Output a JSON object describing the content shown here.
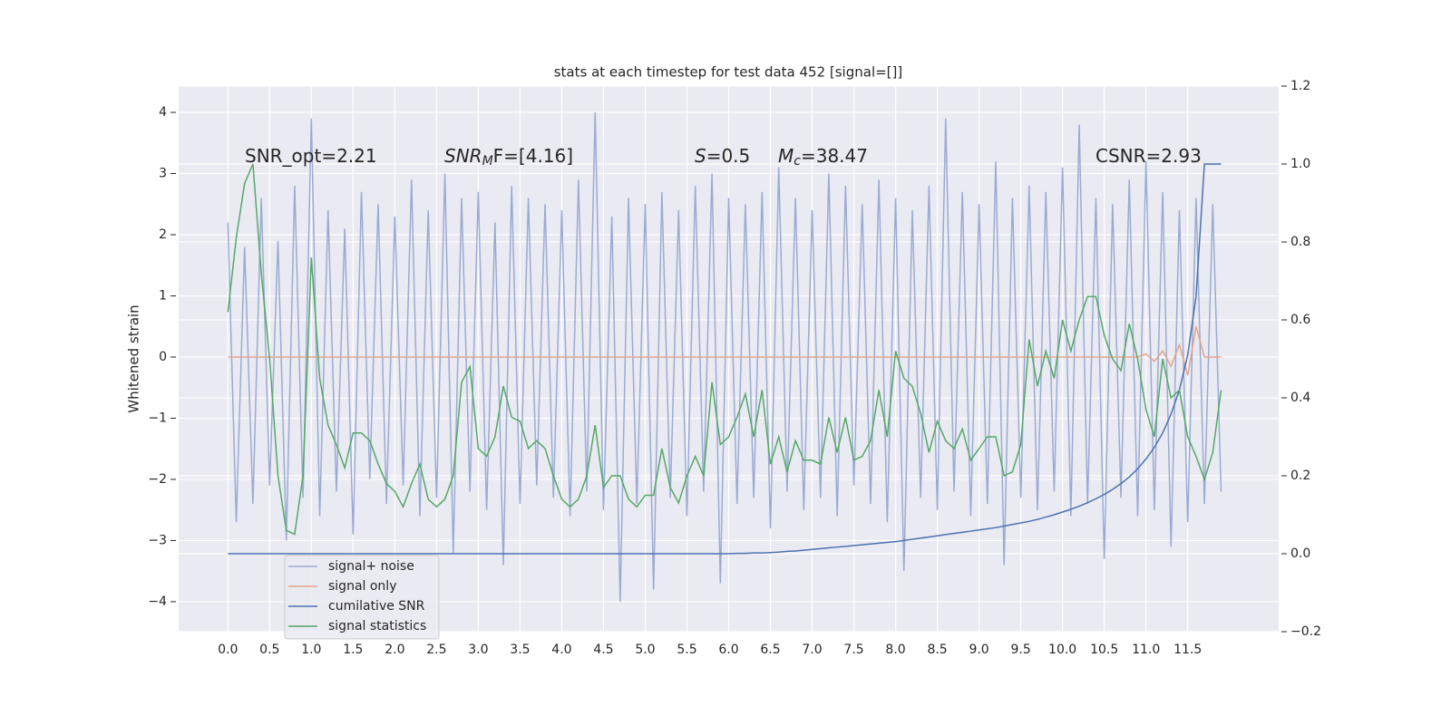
{
  "chart_data": {
    "type": "line",
    "title": "stats at each timestep for test data 452 [signal=[]]",
    "ylabel": "Whitened strain",
    "annotations": [
      {
        "parts": [
          "SNR_opt=2.21"
        ]
      },
      {
        "parts": [
          "SNR",
          "M",
          "F=[4.16]"
        ]
      },
      {
        "parts": [
          "S",
          "=0.5"
        ]
      },
      {
        "parts": [
          "M",
          "c",
          "=38.47"
        ]
      },
      {
        "parts": [
          "CSNR=2.93"
        ]
      }
    ],
    "x": [
      0,
      0.1,
      0.2,
      0.3,
      0.4,
      0.5,
      0.6,
      0.7,
      0.8,
      0.9,
      1.0,
      1.1,
      1.2,
      1.3,
      1.4,
      1.5,
      1.6,
      1.7,
      1.8,
      1.9,
      2.0,
      2.1,
      2.2,
      2.3,
      2.4,
      2.5,
      2.6,
      2.7,
      2.8,
      2.9,
      3.0,
      3.1,
      3.2,
      3.3,
      3.4,
      3.5,
      3.6,
      3.7,
      3.8,
      3.9,
      4.0,
      4.1,
      4.2,
      4.3,
      4.4,
      4.5,
      4.6,
      4.7,
      4.8,
      4.9,
      5.0,
      5.1,
      5.2,
      5.3,
      5.4,
      5.5,
      5.6,
      5.7,
      5.8,
      5.9,
      6.0,
      6.1,
      6.2,
      6.3,
      6.4,
      6.5,
      6.6,
      6.7,
      6.8,
      6.9,
      7.0,
      7.1,
      7.2,
      7.3,
      7.4,
      7.5,
      7.6,
      7.7,
      7.8,
      7.9,
      8.0,
      8.1,
      8.2,
      8.3,
      8.4,
      8.5,
      8.6,
      8.7,
      8.8,
      8.9,
      9.0,
      9.1,
      9.2,
      9.3,
      9.4,
      9.5,
      9.6,
      9.7,
      9.8,
      9.9,
      10.0,
      10.1,
      10.2,
      10.3,
      10.4,
      10.5,
      10.6,
      10.7,
      10.8,
      10.9,
      11.0,
      11.1,
      11.2,
      11.3,
      11.4,
      11.5,
      11.6,
      11.7,
      11.8,
      11.9
    ],
    "series": [
      {
        "name": "signal+ noise",
        "color": "#9aabd2",
        "values": [
          2.2,
          -2.7,
          1.8,
          -2.4,
          2.6,
          -2.1,
          1.9,
          -3.0,
          2.8,
          -2.3,
          3.9,
          -2.6,
          2.4,
          -2.2,
          2.1,
          -2.9,
          2.7,
          -2.0,
          2.5,
          -2.4,
          2.3,
          -2.1,
          2.9,
          -2.6,
          2.4,
          -2.3,
          3.0,
          -3.2,
          2.6,
          -2.2,
          2.7,
          -2.5,
          2.2,
          -3.4,
          2.8,
          -2.4,
          2.6,
          -2.1,
          2.5,
          -2.3,
          2.4,
          -2.6,
          2.9,
          -2.2,
          4.0,
          -2.5,
          2.3,
          -4.0,
          2.6,
          -2.4,
          2.5,
          -3.8,
          2.7,
          -2.3,
          2.4,
          -2.6,
          2.8,
          -2.2,
          3.0,
          -3.7,
          2.6,
          -2.4,
          2.5,
          -2.3,
          2.7,
          -2.8,
          3.1,
          -2.2,
          2.6,
          -2.5,
          2.4,
          -2.3,
          3.0,
          -2.6,
          2.8,
          -2.1,
          2.5,
          -2.4,
          2.9,
          -2.7,
          2.6,
          -3.5,
          2.4,
          -2.3,
          2.8,
          -2.5,
          3.9,
          -2.2,
          2.7,
          -2.6,
          2.5,
          -2.4,
          3.2,
          -3.4,
          2.6,
          -2.3,
          2.8,
          -2.5,
          2.7,
          -2.2,
          3.1,
          -2.6,
          3.8,
          -2.4,
          2.6,
          -3.3,
          2.5,
          -2.3,
          2.9,
          -2.6,
          3.2,
          -2.5,
          2.7,
          -3.1,
          2.4,
          -2.7,
          2.6,
          -2.4,
          2.5,
          -2.2
        ]
      },
      {
        "name": "signal only",
        "color": "#e3a68a",
        "values": [
          0,
          0,
          0,
          0,
          0,
          0,
          0,
          0,
          0,
          0,
          0,
          0,
          0,
          0,
          0,
          0,
          0,
          0,
          0,
          0,
          0,
          0,
          0,
          0,
          0,
          0,
          0,
          0,
          0,
          0,
          0,
          0,
          0,
          0,
          0,
          0,
          0,
          0,
          0,
          0,
          0,
          0,
          0,
          0,
          0,
          0,
          0,
          0,
          0,
          0,
          0,
          0,
          0,
          0,
          0,
          0,
          0,
          0,
          0,
          0,
          0,
          0,
          0,
          0,
          0,
          0,
          0,
          0,
          0,
          0,
          0,
          0,
          0,
          0,
          0,
          0,
          0,
          0,
          0,
          0,
          0,
          0,
          0,
          0,
          0,
          0,
          0,
          0,
          0,
          0,
          0,
          0,
          0,
          0,
          0,
          0,
          0,
          0,
          0,
          0,
          0,
          0,
          0,
          0,
          0,
          0,
          0,
          0,
          0,
          0,
          0.05,
          -0.07,
          0.1,
          -0.15,
          0.2,
          -0.3,
          0.5,
          0,
          0,
          0
        ]
      },
      {
        "name": "cumilative SNR",
        "color": "#4c72b0",
        "axis": "y2",
        "values": [
          0,
          0,
          0,
          0,
          0,
          0,
          0,
          0,
          0,
          0,
          0,
          0,
          0,
          0,
          0,
          0,
          0,
          0,
          0,
          0,
          0,
          0,
          0,
          0,
          0,
          0,
          0,
          0,
          0,
          0,
          0,
          0,
          0,
          0,
          0,
          0,
          0,
          0,
          0,
          0,
          0,
          0,
          0,
          0,
          0,
          0,
          0,
          0,
          0,
          0,
          0,
          0,
          0,
          0,
          0,
          0,
          0,
          0,
          0,
          0,
          0,
          0.001,
          0.001,
          0.002,
          0.002,
          0.003,
          0.004,
          0.006,
          0.007,
          0.009,
          0.011,
          0.013,
          0.015,
          0.017,
          0.019,
          0.021,
          0.023,
          0.025,
          0.027,
          0.029,
          0.031,
          0.034,
          0.037,
          0.04,
          0.043,
          0.046,
          0.049,
          0.052,
          0.055,
          0.058,
          0.061,
          0.064,
          0.067,
          0.071,
          0.075,
          0.079,
          0.083,
          0.088,
          0.094,
          0.1,
          0.107,
          0.114,
          0.122,
          0.131,
          0.141,
          0.152,
          0.165,
          0.18,
          0.197,
          0.218,
          0.243,
          0.273,
          0.31,
          0.358,
          0.42,
          0.51,
          0.66,
          1.0,
          1.0,
          1.0
        ]
      },
      {
        "name": "signal statistics",
        "color": "#55a868",
        "axis": "y2",
        "values": [
          0.62,
          0.81,
          0.95,
          1.0,
          0.72,
          0.5,
          0.2,
          0.06,
          0.05,
          0.2,
          0.76,
          0.45,
          0.33,
          0.28,
          0.22,
          0.31,
          0.31,
          0.29,
          0.23,
          0.18,
          0.16,
          0.12,
          0.18,
          0.23,
          0.14,
          0.12,
          0.14,
          0.2,
          0.44,
          0.48,
          0.27,
          0.25,
          0.3,
          0.43,
          0.35,
          0.34,
          0.27,
          0.29,
          0.27,
          0.2,
          0.14,
          0.12,
          0.14,
          0.2,
          0.33,
          0.17,
          0.2,
          0.2,
          0.14,
          0.12,
          0.15,
          0.15,
          0.27,
          0.17,
          0.13,
          0.2,
          0.25,
          0.2,
          0.44,
          0.28,
          0.3,
          0.35,
          0.41,
          0.3,
          0.42,
          0.23,
          0.3,
          0.21,
          0.29,
          0.24,
          0.24,
          0.23,
          0.35,
          0.26,
          0.35,
          0.24,
          0.25,
          0.29,
          0.42,
          0.3,
          0.52,
          0.45,
          0.43,
          0.36,
          0.26,
          0.34,
          0.29,
          0.27,
          0.32,
          0.24,
          0.27,
          0.3,
          0.3,
          0.2,
          0.21,
          0.28,
          0.55,
          0.43,
          0.52,
          0.45,
          0.6,
          0.52,
          0.6,
          0.66,
          0.66,
          0.56,
          0.5,
          0.47,
          0.59,
          0.5,
          0.37,
          0.3,
          0.5,
          0.4,
          0.42,
          0.3,
          0.25,
          0.19,
          0.26,
          0.42
        ]
      }
    ],
    "xlim": [
      -0.59,
      12.59
    ],
    "xticks": [
      {
        "value": 0,
        "label": "0.0"
      },
      0.5,
      {
        "value": 1,
        "label": "1.0"
      },
      1.5,
      {
        "value": 2,
        "label": "2.0"
      },
      2.5,
      {
        "value": 3,
        "label": "3.0"
      },
      3.5,
      {
        "value": 4,
        "label": "4.0"
      },
      4.5,
      {
        "value": 5,
        "label": "5.0"
      },
      5.5,
      {
        "value": 6,
        "label": "6.0"
      },
      6.5,
      {
        "value": 7,
        "label": "7.0"
      },
      7.5,
      {
        "value": 8,
        "label": "8.0"
      },
      8.5,
      {
        "value": 9,
        "label": "9.0"
      },
      9.5,
      {
        "value": 10,
        "label": "10.0"
      },
      10.5,
      {
        "value": 11,
        "label": "11.0"
      },
      11.5
    ],
    "ylim": [
      -4.49,
      4.43
    ],
    "yticks": [
      {
        "value": -4,
        "label": "−4"
      },
      {
        "value": -3,
        "label": "−3"
      },
      {
        "value": -2,
        "label": "−2"
      },
      {
        "value": -1,
        "label": "−1"
      },
      0,
      1,
      2,
      3,
      4
    ],
    "y2lim": [
      -0.2,
      1.2
    ],
    "y2ticks": [
      {
        "value": -0.2,
        "label": "−0.2"
      },
      {
        "value": 0,
        "label": "0.0"
      },
      0.2,
      0.4,
      0.6,
      0.8,
      {
        "value": 1,
        "label": "1.0"
      },
      1.2
    ],
    "grid": true,
    "legend": "lower left"
  }
}
